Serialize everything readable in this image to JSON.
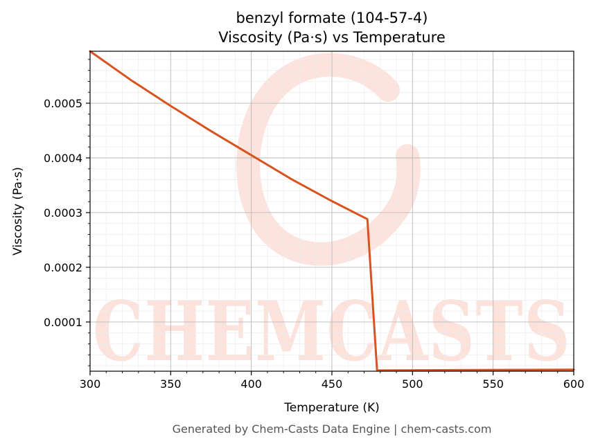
{
  "chart_data": {
    "type": "line",
    "title": "benzyl formate (104-57-4)",
    "subtitle": "Viscosity (Pa·s) vs Temperature",
    "xlabel": "Temperature (K)",
    "ylabel": "Viscosity (Pa·s)",
    "xlim": [
      300,
      600
    ],
    "ylim": [
      1e-05,
      0.000595
    ],
    "x_ticks": [
      300,
      350,
      400,
      450,
      500,
      550,
      600
    ],
    "y_ticks": [
      0.0001,
      0.0002,
      0.0003,
      0.0004,
      0.0005
    ],
    "y_tick_labels": [
      "0.0001",
      "0.0002",
      "0.0003",
      "0.0004",
      "0.0005"
    ],
    "grid": true,
    "series": [
      {
        "color": "#d9531e",
        "x": [
          300,
          325,
          350,
          375,
          400,
          425,
          450,
          472,
          478,
          500,
          550,
          600
        ],
        "y": [
          0.000595,
          0.000543,
          0.000495,
          0.000449,
          0.000405,
          0.000361,
          0.000321,
          0.000288,
          1.15e-05,
          1.18e-05,
          1.23e-05,
          1.28e-05
        ]
      }
    ]
  },
  "watermark": {
    "text": "CHEMCASTS",
    "color": "#fde2dc"
  },
  "footer": "Generated by Chem-Casts Data Engine | chem-casts.com"
}
